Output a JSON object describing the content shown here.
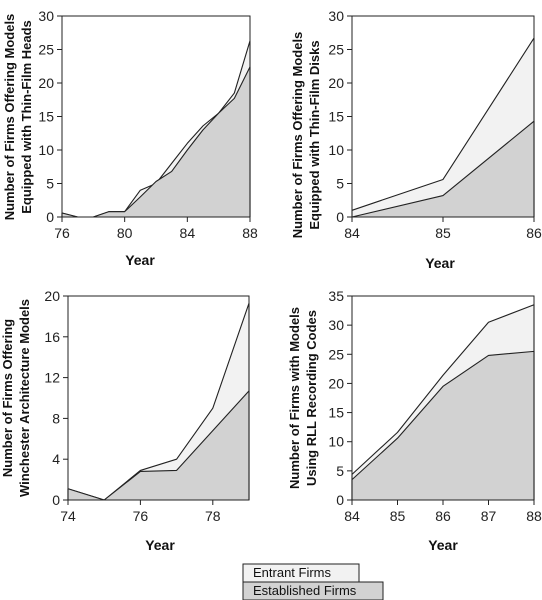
{
  "colors": {
    "entrant": "#f2f2f2",
    "established": "#d2d2d2",
    "line": "#222222"
  },
  "legend": {
    "entrant_label": "Entrant Firms",
    "established_label": "Established Firms"
  },
  "chart_data": [
    {
      "type": "area",
      "xlabel": "Year",
      "ylabel": [
        "Number of Firms Offering Models",
        "Equipped with Thin-Film Heads"
      ],
      "x": [
        76,
        77,
        78,
        79,
        80,
        81,
        82,
        83,
        84,
        85,
        86,
        87,
        88
      ],
      "xticks": [
        76,
        80,
        84,
        88
      ],
      "xlim": [
        76,
        88
      ],
      "yticks": [
        0,
        5,
        10,
        15,
        20,
        25,
        30
      ],
      "ylim": [
        0,
        30
      ],
      "series": [
        {
          "name": "Entrant Firms",
          "values": [
            0.6,
            0,
            0,
            0.8,
            0.8,
            4,
            5,
            8,
            11,
            13.6,
            15.5,
            18.5,
            26.3
          ]
        },
        {
          "name": "Established Firms",
          "values": [
            0.6,
            0,
            0,
            0.8,
            0.8,
            3,
            5.3,
            6.8,
            10,
            13,
            15.5,
            17.7,
            22.4
          ]
        }
      ]
    },
    {
      "type": "area",
      "xlabel": "Year",
      "ylabel": [
        "Number of Firms Offering Models",
        "Equipped with Thin-Film Disks"
      ],
      "x": [
        84,
        85,
        86
      ],
      "xticks": [
        84,
        85,
        86
      ],
      "xlim": [
        84,
        86
      ],
      "yticks": [
        0,
        5,
        10,
        15,
        20,
        25,
        30
      ],
      "ylim": [
        0,
        30
      ],
      "series": [
        {
          "name": "Entrant Firms",
          "values": [
            1,
            5.6,
            26.7
          ]
        },
        {
          "name": "Established Firms",
          "values": [
            0,
            3.2,
            14.3
          ]
        }
      ]
    },
    {
      "type": "area",
      "xlabel": "Year",
      "ylabel": [
        "Number of Firms Offering",
        "Winchester Architecture Models"
      ],
      "x": [
        74,
        75,
        76,
        77,
        78,
        79
      ],
      "xticks": [
        74,
        76,
        78
      ],
      "xlim": [
        74,
        79
      ],
      "yticks": [
        0,
        4,
        8,
        12,
        16,
        20
      ],
      "ylim": [
        0,
        20
      ],
      "series": [
        {
          "name": "Entrant Firms",
          "values": [
            1.1,
            0,
            2.9,
            4,
            9,
            19.3
          ]
        },
        {
          "name": "Established Firms",
          "values": [
            1.1,
            0,
            2.8,
            2.9,
            6.8,
            10.7
          ]
        }
      ]
    },
    {
      "type": "area",
      "xlabel": "Year",
      "ylabel": [
        "Number of Firms with Models",
        "Using RLL Recording Codes"
      ],
      "x": [
        84,
        85,
        86,
        87,
        88
      ],
      "xticks": [
        84,
        85,
        86,
        87,
        88
      ],
      "xlim": [
        84,
        88
      ],
      "yticks": [
        0,
        5,
        10,
        15,
        20,
        25,
        30,
        35
      ],
      "ylim": [
        0,
        35
      ],
      "series": [
        {
          "name": "Entrant Firms",
          "values": [
            4.4,
            11.6,
            21.4,
            30.5,
            33.5
          ]
        },
        {
          "name": "Established Firms",
          "values": [
            3.5,
            10.6,
            19.5,
            24.8,
            25.5
          ]
        }
      ]
    }
  ]
}
